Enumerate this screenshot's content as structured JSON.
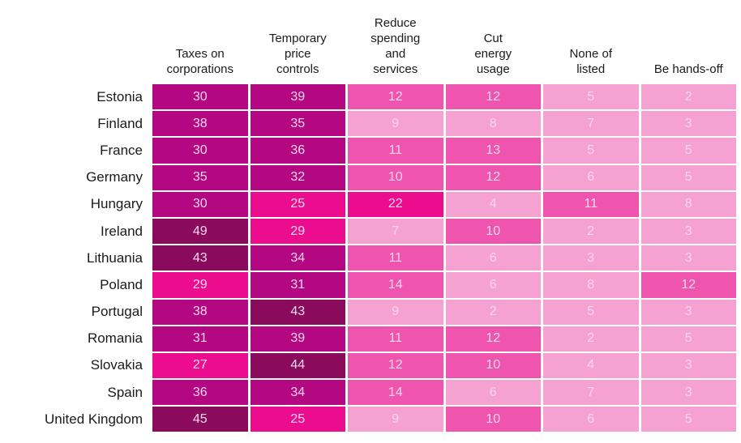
{
  "table": {
    "columns": [
      "Taxes on\ncorporations",
      "Temporary\nprice\ncontrols",
      "Reduce\nspending\nand\nservices",
      "Cut\nenergy\nusage",
      "None of\nlisted",
      "Be hands-off"
    ],
    "rows": [
      {
        "country": "Estonia",
        "values": [
          30,
          39,
          12,
          12,
          5,
          2
        ]
      },
      {
        "country": "Finland",
        "values": [
          38,
          35,
          9,
          8,
          7,
          3
        ]
      },
      {
        "country": "France",
        "values": [
          30,
          36,
          11,
          13,
          5,
          5
        ]
      },
      {
        "country": "Germany",
        "values": [
          35,
          32,
          10,
          12,
          6,
          5
        ]
      },
      {
        "country": "Hungary",
        "values": [
          30,
          25,
          22,
          4,
          11,
          8
        ]
      },
      {
        "country": "Ireland",
        "values": [
          49,
          29,
          7,
          10,
          2,
          3
        ]
      },
      {
        "country": "Lithuania",
        "values": [
          43,
          34,
          11,
          6,
          3,
          3
        ]
      },
      {
        "country": "Poland",
        "values": [
          29,
          31,
          14,
          6,
          8,
          12
        ]
      },
      {
        "country": "Portugal",
        "values": [
          38,
          43,
          9,
          2,
          5,
          3
        ]
      },
      {
        "country": "Romania",
        "values": [
          31,
          39,
          11,
          12,
          2,
          5
        ]
      },
      {
        "country": "Slovakia",
        "values": [
          27,
          44,
          12,
          10,
          4,
          3
        ]
      },
      {
        "country": "Spain",
        "values": [
          36,
          34,
          14,
          6,
          7,
          3
        ]
      },
      {
        "country": "United Kingdom",
        "values": [
          45,
          25,
          9,
          10,
          6,
          5
        ]
      }
    ]
  },
  "colors": {
    "scale": [
      {
        "min": 0,
        "max": 9,
        "hex": "#F5A1D2"
      },
      {
        "min": 10,
        "max": 19,
        "hex": "#EF54AE"
      },
      {
        "min": 20,
        "max": 29,
        "hex": "#EC0D8E"
      },
      {
        "min": 30,
        "max": 39,
        "hex": "#B30881"
      },
      {
        "min": 40,
        "max": 100,
        "hex": "#8A0B5B"
      }
    ],
    "cell_text": "#F7D7EB",
    "label_text": "#1A1A1A",
    "background": "#FFFFFF"
  },
  "chart_data": {
    "type": "heatmap",
    "title": "",
    "xlabel": "",
    "ylabel": "",
    "categories": [
      "Taxes on corporations",
      "Temporary price controls",
      "Reduce spending and services",
      "Cut energy usage",
      "None of listed",
      "Be hands-off"
    ],
    "row_categories": [
      "Estonia",
      "Finland",
      "France",
      "Germany",
      "Hungary",
      "Ireland",
      "Lithuania",
      "Poland",
      "Portugal",
      "Romania",
      "Slovakia",
      "Spain",
      "United Kingdom"
    ],
    "series": [
      {
        "name": "Estonia",
        "values": [
          30,
          39,
          12,
          12,
          5,
          2
        ]
      },
      {
        "name": "Finland",
        "values": [
          38,
          35,
          9,
          8,
          7,
          3
        ]
      },
      {
        "name": "France",
        "values": [
          30,
          36,
          11,
          13,
          5,
          5
        ]
      },
      {
        "name": "Germany",
        "values": [
          35,
          32,
          10,
          12,
          6,
          5
        ]
      },
      {
        "name": "Hungary",
        "values": [
          30,
          25,
          22,
          4,
          11,
          8
        ]
      },
      {
        "name": "Ireland",
        "values": [
          49,
          29,
          7,
          10,
          2,
          3
        ]
      },
      {
        "name": "Lithuania",
        "values": [
          43,
          34,
          11,
          6,
          3,
          3
        ]
      },
      {
        "name": "Poland",
        "values": [
          29,
          31,
          14,
          6,
          8,
          12
        ]
      },
      {
        "name": "Portugal",
        "values": [
          38,
          43,
          9,
          2,
          5,
          3
        ]
      },
      {
        "name": "Romania",
        "values": [
          31,
          39,
          11,
          12,
          2,
          5
        ]
      },
      {
        "name": "Slovakia",
        "values": [
          27,
          44,
          12,
          10,
          4,
          3
        ]
      },
      {
        "name": "Spain",
        "values": [
          36,
          34,
          14,
          6,
          7,
          3
        ]
      },
      {
        "name": "United Kingdom",
        "values": [
          45,
          25,
          9,
          10,
          6,
          5
        ]
      }
    ],
    "value_bins": [
      {
        "range": "0-9",
        "color": "#F5A1D2"
      },
      {
        "range": "10-19",
        "color": "#EF54AE"
      },
      {
        "range": "20-29",
        "color": "#EC0D8E"
      },
      {
        "range": "30-39",
        "color": "#B30881"
      },
      {
        "range": "40+",
        "color": "#8A0B5B"
      }
    ],
    "legend_position": "none",
    "grid": false
  }
}
